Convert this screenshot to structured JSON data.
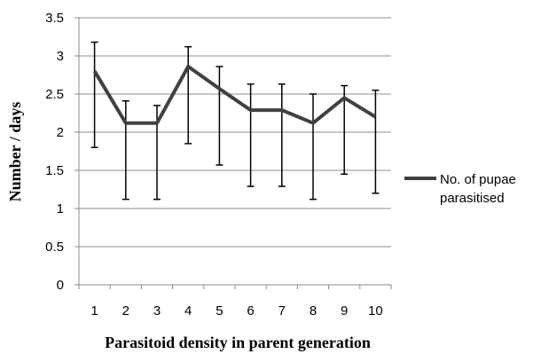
{
  "chart_data": {
    "type": "line",
    "title": "",
    "xlabel": "Parasitoid density in parent generation",
    "ylabel": "Number / days",
    "categories": [
      "1",
      "2",
      "3",
      "4",
      "5",
      "6",
      "7",
      "8",
      "9",
      "10"
    ],
    "ylim": [
      0,
      3.5
    ],
    "yticks": [
      "0",
      "0.5",
      "1",
      "1.5",
      "2",
      "2.5",
      "3",
      "3.5"
    ],
    "grid": true,
    "legend_position": "right",
    "series": [
      {
        "name": "No. of pupae parasitised",
        "name_lines": [
          "No. of pupae",
          "parasitised"
        ],
        "color": "#404040",
        "values": [
          2.8,
          2.12,
          2.12,
          2.86,
          2.57,
          2.29,
          2.29,
          2.12,
          2.45,
          2.2
        ],
        "error_upper": [
          3.18,
          2.41,
          2.35,
          3.12,
          2.86,
          2.63,
          2.63,
          2.5,
          2.61,
          2.55
        ],
        "error_lower": [
          1.8,
          1.12,
          1.12,
          1.85,
          1.57,
          1.29,
          1.29,
          1.12,
          1.45,
          1.2
        ]
      }
    ]
  }
}
